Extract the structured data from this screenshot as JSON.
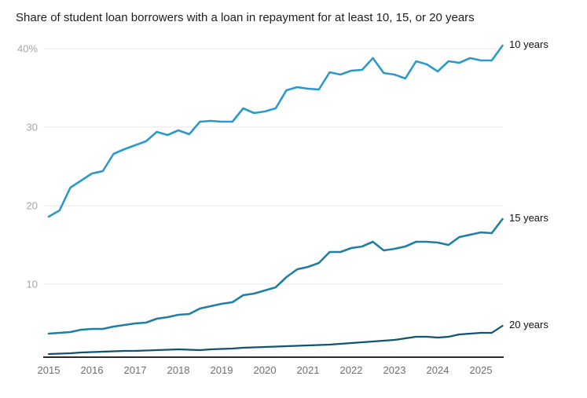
{
  "page": {
    "background": "#ffffff"
  },
  "chart_data": {
    "type": "line",
    "title": "Share of student loan borrowers with a loan in repayment for at least 10, 15, or 20 years",
    "xlabel": "",
    "ylabel": "",
    "x_start_year": 2015,
    "x_step_years": 0.25,
    "x_end_year": 2025.5,
    "x_tick_labels": [
      "2015",
      "2016",
      "2017",
      "2018",
      "2019",
      "2020",
      "2021",
      "2022",
      "2023",
      "2024",
      "2025"
    ],
    "y_ticks": [
      10,
      20,
      30,
      40
    ],
    "y_tick_labels": [
      "10",
      "20",
      "30",
      "40%"
    ],
    "ylim": [
      0.7,
      42
    ],
    "grid": "horizontal-only",
    "legend_position": "line-end-labels",
    "series": [
      {
        "name": "10 years",
        "color": "#2b9aca",
        "values": [
          18.6,
          19.4,
          22.3,
          23.2,
          24.1,
          24.4,
          26.6,
          27.2,
          27.7,
          28.2,
          29.4,
          29.0,
          29.6,
          29.1,
          30.7,
          30.8,
          30.7,
          30.7,
          32.4,
          31.8,
          32.0,
          32.4,
          34.7,
          35.1,
          34.9,
          34.8,
          37.0,
          36.7,
          37.2,
          37.3,
          38.8,
          36.9,
          36.7,
          36.2,
          38.4,
          38.0,
          37.1,
          38.4,
          38.2,
          38.8,
          38.5,
          38.5,
          40.4
        ]
      },
      {
        "name": "15 years",
        "color": "#1f7fa3",
        "values": [
          3.7,
          3.8,
          3.9,
          4.2,
          4.3,
          4.3,
          4.6,
          4.8,
          5.0,
          5.1,
          5.6,
          5.8,
          6.1,
          6.2,
          6.9,
          7.2,
          7.5,
          7.7,
          8.6,
          8.8,
          9.2,
          9.6,
          10.9,
          11.9,
          12.2,
          12.7,
          14.1,
          14.1,
          14.6,
          14.8,
          15.4,
          14.3,
          14.5,
          14.8,
          15.4,
          15.4,
          15.3,
          15.0,
          16.0,
          16.3,
          16.6,
          16.5,
          18.3
        ]
      },
      {
        "name": "20 years",
        "color": "#12536f",
        "values": [
          1.1,
          1.15,
          1.2,
          1.3,
          1.35,
          1.4,
          1.45,
          1.5,
          1.5,
          1.55,
          1.6,
          1.65,
          1.7,
          1.65,
          1.6,
          1.7,
          1.75,
          1.8,
          1.9,
          1.95,
          2.0,
          2.05,
          2.1,
          2.15,
          2.2,
          2.25,
          2.3,
          2.4,
          2.5,
          2.6,
          2.7,
          2.8,
          2.9,
          3.1,
          3.3,
          3.3,
          3.2,
          3.3,
          3.6,
          3.7,
          3.8,
          3.8,
          4.7
        ]
      }
    ],
    "colors": {
      "grid_line": "#e6e6e6",
      "axis_line": "#2b2b2b",
      "y_tick_label": "#a6a6a6",
      "x_tick_label": "#6f6f6f",
      "series_end_label": "#111111"
    }
  }
}
